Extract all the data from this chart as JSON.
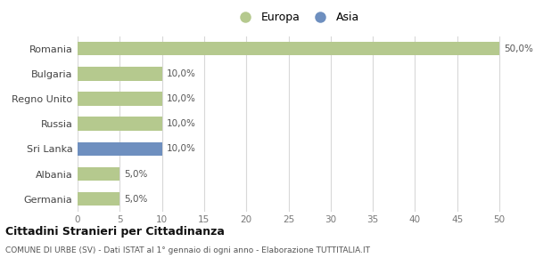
{
  "categories": [
    "Romania",
    "Bulgaria",
    "Regno Unito",
    "Russia",
    "Sri Lanka",
    "Albania",
    "Germania"
  ],
  "values": [
    50.0,
    10.0,
    10.0,
    10.0,
    10.0,
    5.0,
    5.0
  ],
  "bar_colors": [
    "#b5c98e",
    "#b5c98e",
    "#b5c98e",
    "#b5c98e",
    "#6e8fbf",
    "#b5c98e",
    "#b5c98e"
  ],
  "bar_labels": [
    "50,0%",
    "10,0%",
    "10,0%",
    "10,0%",
    "10,0%",
    "5,0%",
    "5,0%"
  ],
  "legend_europa_color": "#b5c98e",
  "legend_asia_color": "#6e8fbf",
  "xlim": [
    0,
    52
  ],
  "xticks": [
    0,
    5,
    10,
    15,
    20,
    25,
    30,
    35,
    40,
    45,
    50
  ],
  "title_main": "Cittadini Stranieri per Cittadinanza",
  "title_sub": "COMUNE DI URBE (SV) - Dati ISTAT al 1° gennaio di ogni anno - Elaborazione TUTTITALIA.IT",
  "background_color": "#ffffff",
  "grid_color": "#d8d8d8",
  "bar_height": 0.55
}
